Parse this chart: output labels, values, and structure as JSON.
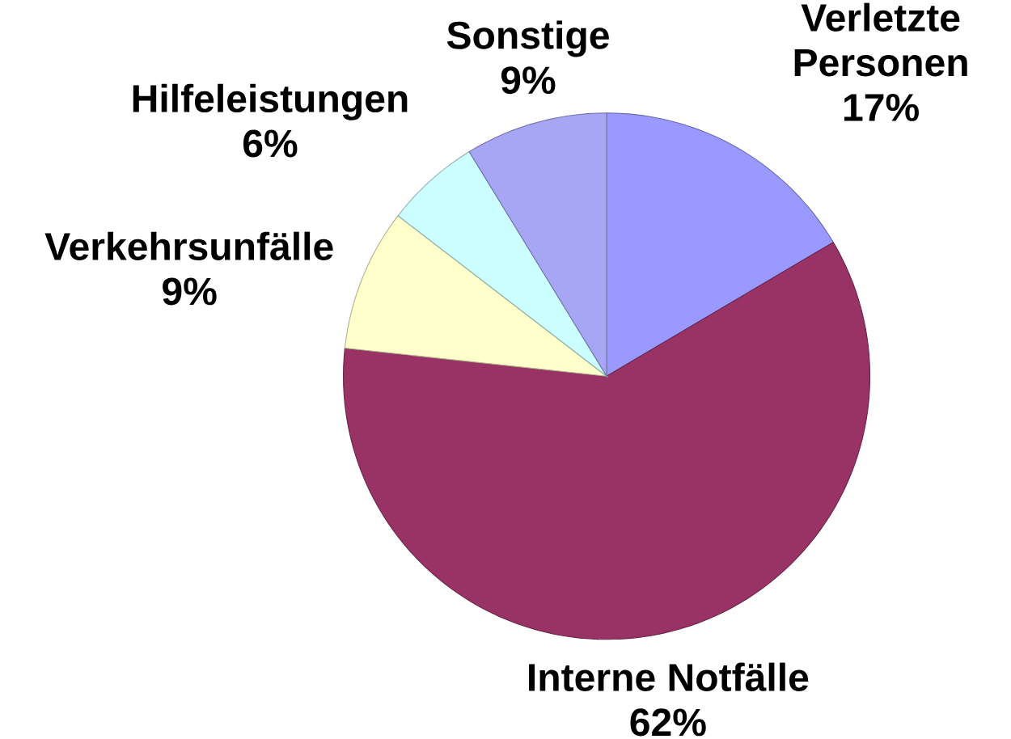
{
  "chart_data": {
    "type": "pie",
    "categories": [
      "Verletzte Personen",
      "Interne Notfälle",
      "Verkehrsunfälle",
      "Hilfeleistungen",
      "Sonstige"
    ],
    "values": [
      17,
      62,
      9,
      6,
      9
    ],
    "value_labels": [
      "17%",
      "62%",
      "9%",
      "6%",
      "9%"
    ],
    "colors": [
      "#9999ff",
      "#993366",
      "#ffffcc",
      "#ccffff",
      "#a6a6f5"
    ]
  }
}
